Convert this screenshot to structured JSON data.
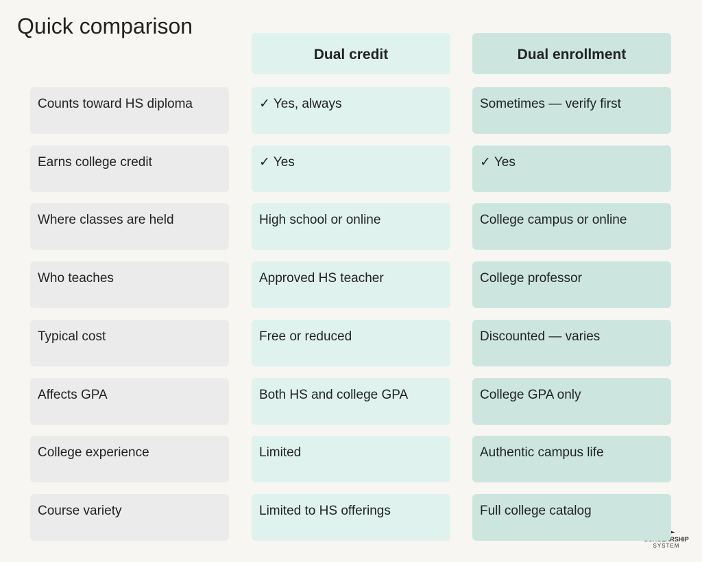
{
  "header": {
    "title": "Quick comparison"
  },
  "table": {
    "columns": [
      "Dual credit",
      "Dual enrollment"
    ],
    "rows": [
      [
        "Counts toward HS diploma",
        "✓ Yes, always",
        "Sometimes — verify first"
      ],
      [
        "Earns college credit",
        "✓ Yes",
        "✓ Yes"
      ],
      [
        "Where classes are held",
        "High school or online",
        "College campus or online"
      ],
      [
        "Who teaches",
        "Approved HS teacher",
        "College professor"
      ],
      [
        "Typical cost",
        "Free or reduced",
        "Discounted — varies"
      ],
      [
        "Affects GPA",
        "Both HS and college GPA",
        "College GPA only"
      ],
      [
        "College experience",
        "Limited",
        "Authentic campus life"
      ],
      [
        "Course variety",
        "Limited to HS offerings",
        "Full college catalog"
      ]
    ]
  },
  "logo": {
    "line1": "SCHOLARSHIP",
    "line2": "SYSTEM"
  }
}
